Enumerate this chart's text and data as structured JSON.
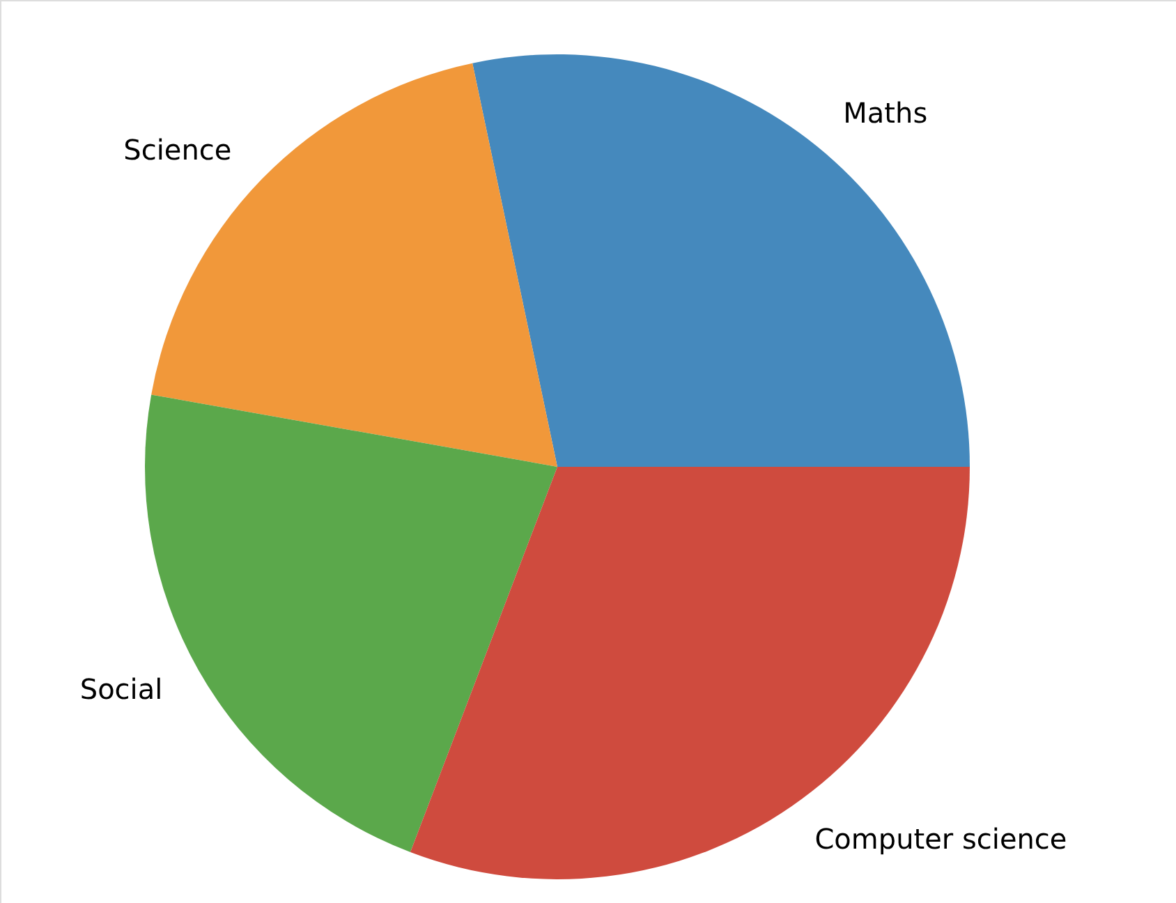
{
  "chart_data": {
    "type": "pie",
    "categories": [
      "Maths",
      "Science",
      "Social",
      "Computer science"
    ],
    "values": [
      28.3,
      18.9,
      22.0,
      30.8
    ],
    "colors": [
      "#4589bd",
      "#f1983a",
      "#5ba84b",
      "#cf4b3e"
    ]
  }
}
